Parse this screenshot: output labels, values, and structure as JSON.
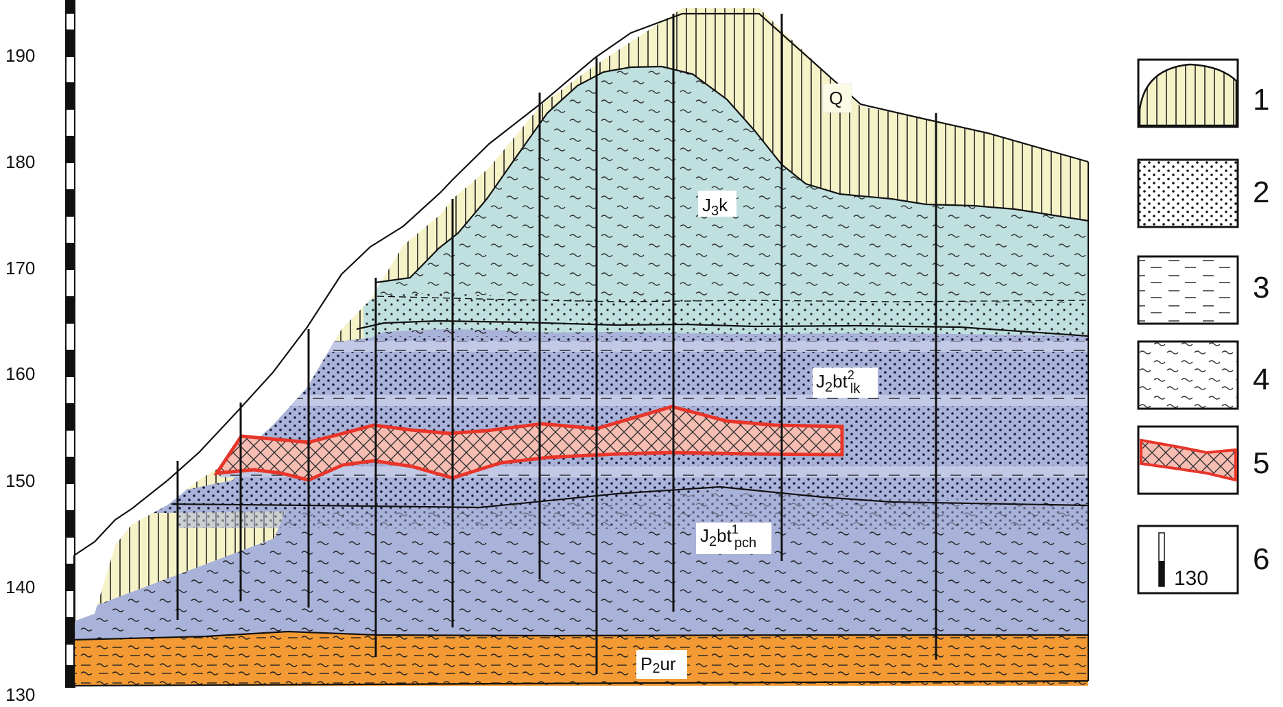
{
  "elevation_axis": {
    "ticks": [
      "190",
      "180",
      "170",
      "160",
      "150",
      "140",
      "130"
    ]
  },
  "units": {
    "Q": {
      "main": "Q"
    },
    "J3k": {
      "main": "J",
      "sub": "3",
      "main2": "k"
    },
    "J2bt2lk": {
      "main": "J",
      "sub": "2",
      "main2": "bt",
      "sup": "2",
      "sub2": "lk"
    },
    "J2bt1pch": {
      "main": "J",
      "sub": "2",
      "main2": "bt",
      "sup": "1",
      "sub2": "pch"
    },
    "P2ur": {
      "main": "P",
      "sub": "2",
      "main2": "ur"
    }
  },
  "legend": {
    "items": [
      {
        "number": "1",
        "icon": "quaternary-pattern"
      },
      {
        "number": "2",
        "icon": "sand-dots-pattern"
      },
      {
        "number": "3",
        "icon": "clay-dash-pattern"
      },
      {
        "number": "4",
        "icon": "wavy-pattern"
      },
      {
        "number": "5",
        "icon": "ore-body-pattern"
      },
      {
        "number": "6",
        "icon": "borehole-scale",
        "scale_label": "130"
      }
    ]
  },
  "colors": {
    "quaternary": "#f5f2c8",
    "j3k": "#bfe0de",
    "j2bt": "#a9b2d8",
    "p2ur": "#f39a34",
    "ore_fill": "#f6bdb3",
    "ore_outline": "#e8352a"
  }
}
